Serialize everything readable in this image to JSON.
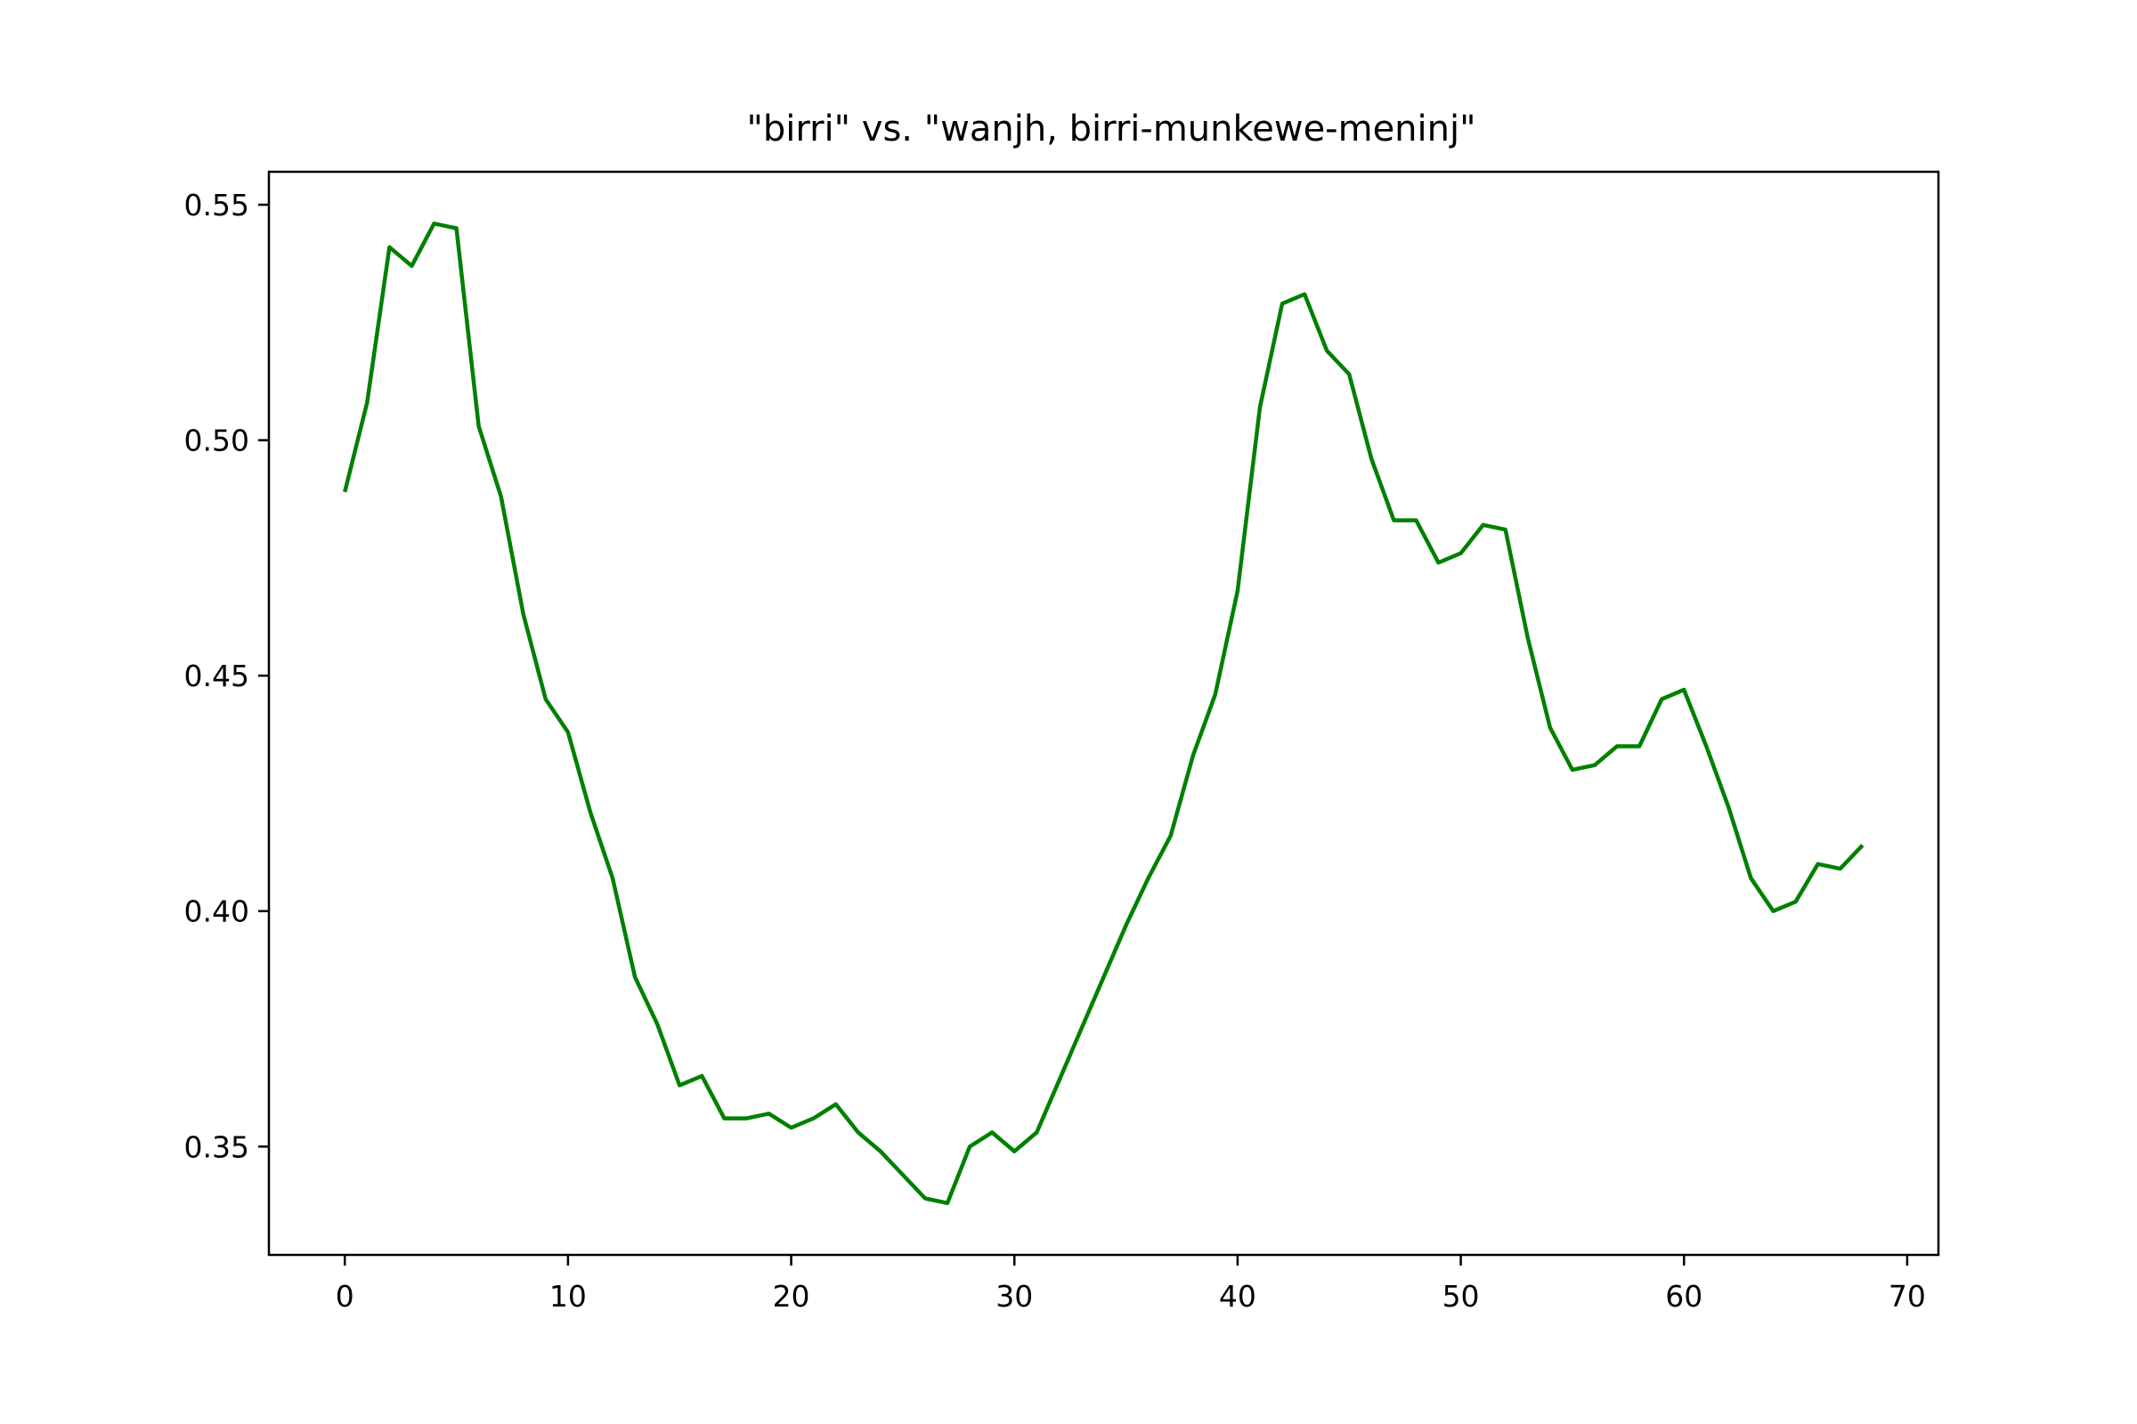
{
  "chart_data": {
    "type": "line",
    "title": "\"birri\" vs. \"wanjh, birri-munkewe-meninj\"",
    "xlabel": "",
    "ylabel": "",
    "xlim": [
      -3.4,
      71.4
    ],
    "ylim": [
      0.327,
      0.557
    ],
    "xticks": [
      0,
      10,
      20,
      30,
      40,
      50,
      60,
      70
    ],
    "xtick_labels": [
      "0",
      "10",
      "20",
      "30",
      "40",
      "50",
      "60",
      "70"
    ],
    "yticks": [
      0.35,
      0.4,
      0.45,
      0.5,
      0.55
    ],
    "ytick_labels": [
      "0.35",
      "0.40",
      "0.45",
      "0.50",
      "0.55"
    ],
    "grid": false,
    "legend": "none",
    "colors": {
      "line": "#008000",
      "axes": "#000000",
      "background": "#ffffff"
    },
    "series": [
      {
        "x": [
          0,
          1,
          2,
          3,
          4,
          5,
          6,
          7,
          8,
          9,
          10,
          11,
          12,
          13,
          14,
          15,
          16,
          17,
          18,
          19,
          20,
          21,
          22,
          23,
          24,
          25,
          26,
          27,
          28,
          29,
          30,
          31,
          32,
          33,
          34,
          35,
          36,
          37,
          38,
          39,
          40,
          41,
          42,
          43,
          44,
          45,
          46,
          47,
          48,
          49,
          50,
          51,
          52,
          53,
          54,
          55,
          56,
          57,
          58,
          59,
          60,
          61,
          62,
          63,
          64,
          65,
          66,
          67,
          68
        ],
        "values": [
          0.489,
          0.508,
          0.541,
          0.537,
          0.546,
          0.545,
          0.503,
          0.488,
          0.463,
          0.445,
          0.438,
          0.421,
          0.407,
          0.386,
          0.376,
          0.363,
          0.365,
          0.356,
          0.356,
          0.357,
          0.354,
          0.356,
          0.359,
          0.353,
          0.349,
          0.344,
          0.339,
          0.338,
          0.35,
          0.353,
          0.349,
          0.353,
          0.364,
          0.375,
          0.386,
          0.397,
          0.407,
          0.416,
          0.433,
          0.446,
          0.468,
          0.507,
          0.529,
          0.531,
          0.519,
          0.514,
          0.496,
          0.483,
          0.483,
          0.474,
          0.476,
          0.482,
          0.481,
          0.458,
          0.439,
          0.43,
          0.431,
          0.435,
          0.435,
          0.445,
          0.447,
          0.435,
          0.422,
          0.407,
          0.4,
          0.402,
          0.41,
          0.409,
          0.414
        ]
      }
    ]
  }
}
